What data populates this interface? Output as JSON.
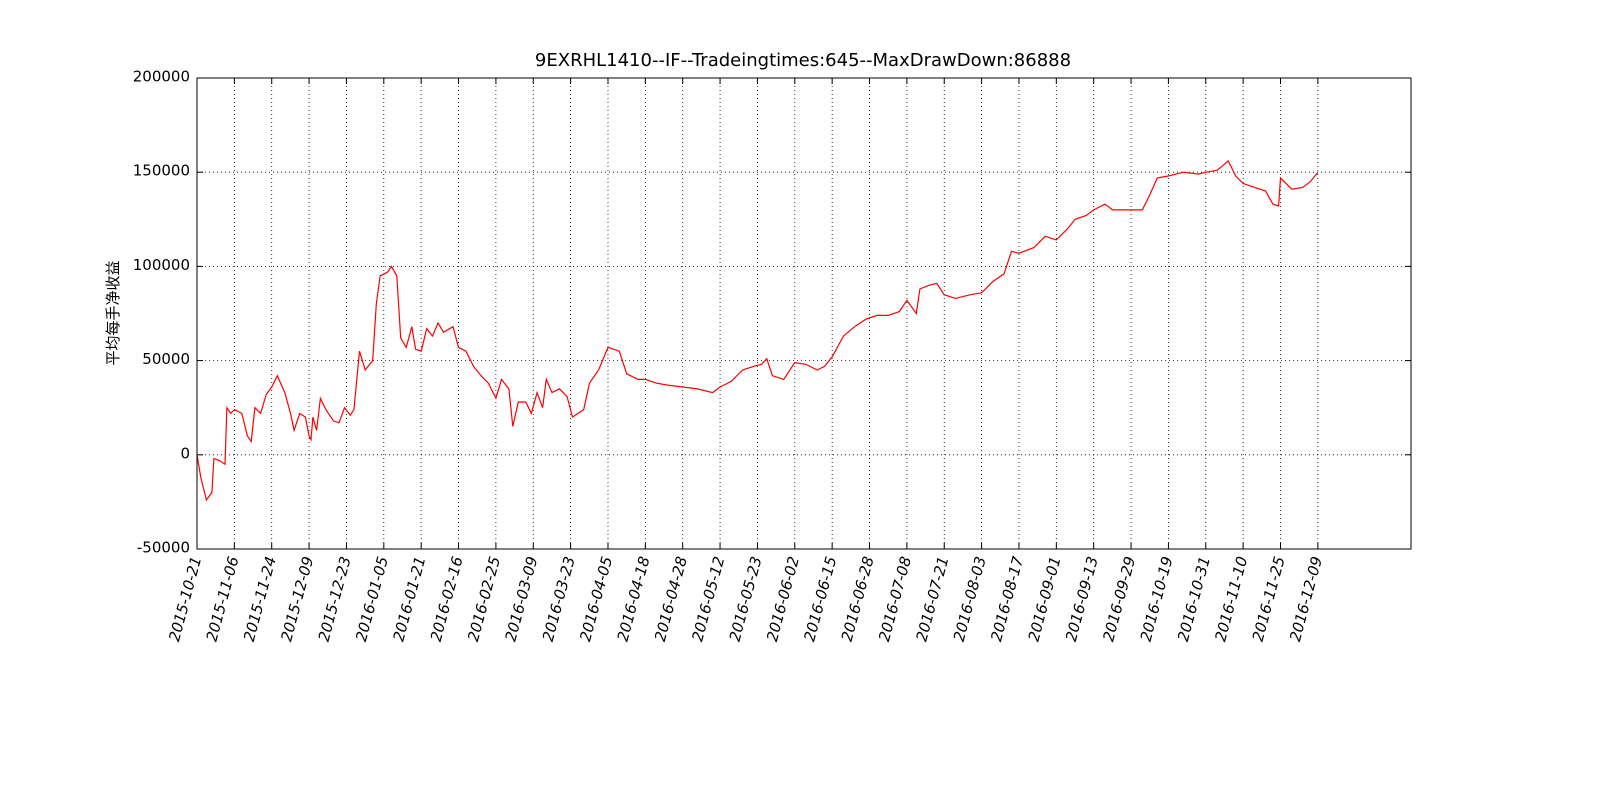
{
  "chart_data": {
    "type": "line",
    "title": "9EXRHL1410--IF--Tradeingtimes:645--MaxDrawDown:86888",
    "y_label": "平均每手净收益",
    "color": "#ff0000",
    "grid": true,
    "xlim": [
      0,
      698.6
    ],
    "ylim": [
      -50000,
      200000
    ],
    "yticks": [
      -50000,
      0,
      50000,
      100000,
      150000,
      200000
    ],
    "xticks": [
      {
        "value": 0,
        "label": "2015-10-21"
      },
      {
        "value": 21.5,
        "label": "2015-11-06"
      },
      {
        "value": 43,
        "label": "2015-11-24"
      },
      {
        "value": 64.5,
        "label": "2015-12-09"
      },
      {
        "value": 86,
        "label": "2015-12-23"
      },
      {
        "value": 107.5,
        "label": "2016-01-05"
      },
      {
        "value": 129,
        "label": "2016-01-21"
      },
      {
        "value": 150.5,
        "label": "2016-02-16"
      },
      {
        "value": 172,
        "label": "2016-02-25"
      },
      {
        "value": 193.5,
        "label": "2016-03-09"
      },
      {
        "value": 215,
        "label": "2016-03-23"
      },
      {
        "value": 236.5,
        "label": "2016-04-05"
      },
      {
        "value": 258,
        "label": "2016-04-18"
      },
      {
        "value": 279.5,
        "label": "2016-04-28"
      },
      {
        "value": 301,
        "label": "2016-05-12"
      },
      {
        "value": 322.5,
        "label": "2016-05-23"
      },
      {
        "value": 344,
        "label": "2016-06-02"
      },
      {
        "value": 365.5,
        "label": "2016-06-15"
      },
      {
        "value": 387,
        "label": "2016-06-28"
      },
      {
        "value": 408.5,
        "label": "2016-07-08"
      },
      {
        "value": 430,
        "label": "2016-07-21"
      },
      {
        "value": 451.5,
        "label": "2016-08-03"
      },
      {
        "value": 473,
        "label": "2016-08-17"
      },
      {
        "value": 494.5,
        "label": "2016-09-01"
      },
      {
        "value": 516,
        "label": "2016-09-13"
      },
      {
        "value": 537.5,
        "label": "2016-09-29"
      },
      {
        "value": 559,
        "label": "2016-10-19"
      },
      {
        "value": 580.5,
        "label": "2016-10-31"
      },
      {
        "value": 602,
        "label": "2016-11-10"
      },
      {
        "value": 623.5,
        "label": "2016-11-25"
      },
      {
        "value": 645,
        "label": "2016-12-09"
      }
    ],
    "x": [
      0,
      2.2,
      5.4,
      8.6,
      9.7,
      12.9,
      16.1,
      17.2,
      19.4,
      21.5,
      25.8,
      29.0,
      31.2,
      33.3,
      36.6,
      39.8,
      43,
      46.2,
      50.5,
      53.8,
      55.9,
      59.1,
      62.4,
      64.5,
      65.6,
      66.7,
      68.8,
      71.0,
      74.2,
      78.5,
      81.7,
      84.9,
      88.2,
      90.3,
      93.5,
      96.8,
      101.1,
      103.2,
      105.4,
      109.7,
      111.8,
      115.0,
      117.2,
      120.4,
      123.6,
      125.8,
      129,
      132.2,
      135.5,
      138.7,
      141.9,
      147.3,
      150.5,
      154.8,
      159.1,
      163.4,
      167.7,
      172,
      175.2,
      179.5,
      181.7,
      184.9,
      189.2,
      192.4,
      195.7,
      198.9,
      201.0,
      204.3,
      208.6,
      212.9,
      216.1,
      219.3,
      222.5,
      225.8,
      231.1,
      236.5,
      243.0,
      247.3,
      253.7,
      258,
      264.5,
      270.9,
      279.5,
      288.1,
      296.7,
      301,
      307.5,
      313.9,
      320.4,
      324.7,
      327.9,
      331.1,
      337.6,
      344,
      350.5,
      356.9,
      361.2,
      365.5,
      372,
      378.4,
      384.9,
      391.3,
      397.8,
      404.2,
      408.5,
      413.9,
      416.0,
      421.4,
      425.7,
      430,
      436.5,
      445.1,
      451.5,
      458,
      464.4,
      468.7,
      473,
      481.6,
      488.1,
      494.5,
      501,
      505.3,
      511.7,
      516,
      522.5,
      526.8,
      537.5,
      544,
      548.3,
      552.6,
      559,
      567.6,
      576.2,
      580.5,
      587,
      593.4,
      597.7,
      602,
      608.5,
      614.9,
      619.2,
      622.4,
      623.5,
      630,
      636.4,
      640.7,
      645
    ],
    "values": [
      0,
      -12000,
      -24000,
      -20000,
      -2000,
      -3000,
      -5000,
      25000,
      22000,
      24000,
      22000,
      10000,
      7000,
      25000,
      22000,
      32000,
      36000,
      42000,
      33000,
      22000,
      13000,
      22000,
      20000,
      10000,
      8000,
      20000,
      13000,
      30000,
      24000,
      18000,
      17000,
      25000,
      21000,
      24000,
      55000,
      45000,
      50000,
      80000,
      95000,
      97000,
      100000,
      95000,
      62000,
      57000,
      68000,
      56000,
      55000,
      67000,
      63000,
      70000,
      65000,
      68000,
      57000,
      55000,
      47000,
      42000,
      38000,
      30000,
      40000,
      35000,
      15000,
      28000,
      28000,
      22000,
      33000,
      25000,
      40000,
      33000,
      35000,
      31000,
      20000,
      22000,
      24000,
      38000,
      45000,
      57000,
      55000,
      43000,
      40000,
      40000,
      38000,
      37000,
      36000,
      35000,
      33000,
      36000,
      39000,
      45000,
      47000,
      48000,
      51000,
      42000,
      40000,
      49000,
      48000,
      45000,
      47000,
      52000,
      63000,
      68000,
      72000,
      74000,
      74000,
      76000,
      82000,
      75000,
      88000,
      90000,
      91000,
      85000,
      83000,
      85000,
      86000,
      92000,
      96000,
      108000,
      107000,
      110000,
      116000,
      114000,
      120000,
      125000,
      127000,
      130000,
      133000,
      130000,
      130000,
      130000,
      138000,
      147000,
      148000,
      150000,
      149000,
      150000,
      151000,
      156000,
      148000,
      144000,
      142000,
      140000,
      133000,
      132000,
      147000,
      141000,
      142000,
      145000,
      150000
    ]
  }
}
